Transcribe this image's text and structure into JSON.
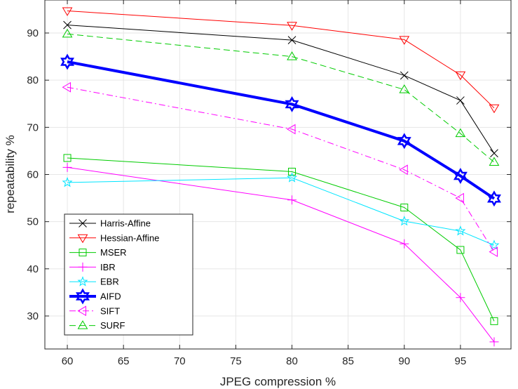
{
  "chart_data": {
    "type": "line",
    "title": "",
    "xlabel": "JPEG compression %",
    "ylabel": "repeatability %",
    "xlim": [
      58,
      99.5
    ],
    "ylim": [
      23,
      97
    ],
    "x": [
      60,
      80,
      90,
      95,
      98
    ],
    "xticks": [
      60,
      65,
      70,
      75,
      80,
      85,
      90,
      95
    ],
    "xtick_labels": [
      "60",
      "65",
      "70",
      "75",
      "80",
      "85",
      "90",
      "95"
    ],
    "yticks": [
      30,
      40,
      50,
      60,
      70,
      80,
      90
    ],
    "ytick_labels": [
      "30",
      "40",
      "50",
      "60",
      "70",
      "80",
      "90"
    ],
    "grid": true,
    "legend_position": "bottom-left",
    "series": [
      {
        "name": "Harris-Affine",
        "values": [
          91.7,
          88.5,
          81.0,
          75.7,
          64.5
        ],
        "color": "#000000",
        "dash": "solid",
        "marker": "x",
        "width": 1
      },
      {
        "name": "Hessian-Affine",
        "values": [
          94.7,
          91.6,
          88.6,
          81.1,
          74.1
        ],
        "color": "#ff0000",
        "dash": "solid",
        "marker": "triangle-down",
        "width": 1
      },
      {
        "name": "MSER",
        "values": [
          63.5,
          60.6,
          53.0,
          44.0,
          28.9
        ],
        "color": "#00cc00",
        "dash": "solid",
        "marker": "square",
        "width": 1
      },
      {
        "name": "IBR",
        "values": [
          61.5,
          54.6,
          45.3,
          33.9,
          24.5
        ],
        "color": "#ff00ff",
        "dash": "solid",
        "marker": "plus",
        "width": 1
      },
      {
        "name": "EBR",
        "values": [
          58.3,
          59.3,
          50.1,
          48.0,
          45.0
        ],
        "color": "#00e5ff",
        "dash": "solid",
        "marker": "star",
        "width": 1
      },
      {
        "name": "AIFD",
        "values": [
          83.9,
          74.9,
          67.1,
          59.7,
          54.9
        ],
        "color": "#0000ff",
        "dash": "solid",
        "marker": "hexagram",
        "width": 4
      },
      {
        "name": "SIFT",
        "values": [
          78.5,
          69.6,
          61.0,
          55.0,
          43.6
        ],
        "color": "#ff00ff",
        "dash": "dashdot",
        "marker": "triangle-left",
        "width": 1
      },
      {
        "name": "SURF",
        "values": [
          89.8,
          85.0,
          78.0,
          68.7,
          62.6
        ],
        "color": "#00cc00",
        "dash": "dashed",
        "marker": "triangle-up",
        "width": 1
      }
    ]
  }
}
